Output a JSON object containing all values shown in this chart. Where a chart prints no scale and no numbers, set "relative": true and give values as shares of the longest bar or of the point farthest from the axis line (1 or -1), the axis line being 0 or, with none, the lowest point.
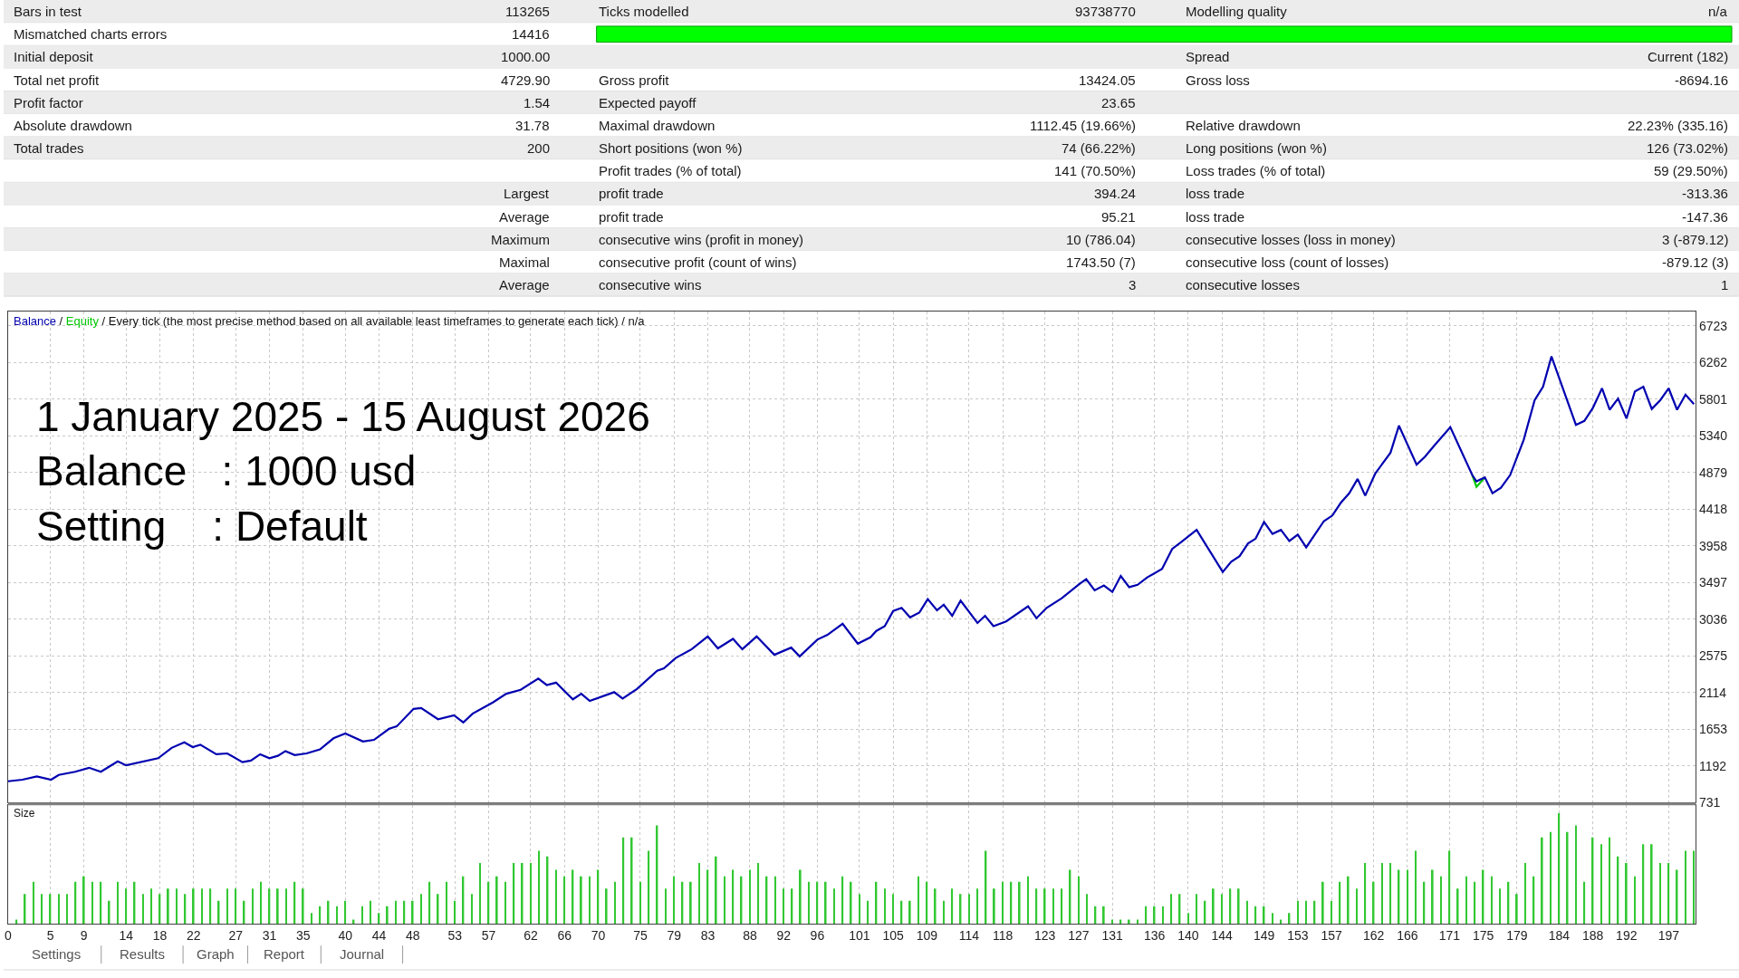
{
  "chart_data": [
    {
      "type": "other",
      "annotations": [
        "Bars in test",
        "113265",
        "Ticks modelled",
        "93738770",
        "Modelling quality",
        "n/a",
        "Mismatched charts errors",
        "14416",
        null,
        null,
        null,
        null,
        "Initial deposit",
        "1000.00",
        null,
        null,
        "Spread",
        "Current (182)",
        "Total net profit",
        "4729.90",
        "Gross profit",
        "13424.05",
        "Gross loss",
        "-8694.16",
        "Profit factor",
        "1.54",
        "Expected payoff",
        "23.65",
        null,
        null,
        "Absolute drawdown",
        "31.78",
        "Maximal drawdown",
        "1112.45 (19.66%)",
        "Relative drawdown",
        "22.23% (335.16)",
        "Total trades",
        "200",
        "Short positions (won %)",
        "74 (66.22%)",
        "Long positions (won %)",
        "126 (73.02%)",
        null,
        null,
        "Profit trades (% of total)",
        "141 (70.50%)",
        "Loss trades (% of total)",
        "59 (29.50%)",
        null,
        "Largest",
        "profit trade",
        "394.24",
        "loss trade",
        "-313.36",
        null,
        "Average",
        "profit trade",
        "95.21",
        "loss trade",
        "-147.36",
        null,
        "Maximum",
        "consecutive wins (profit in money)",
        "10 (786.04)",
        "consecutive losses (loss in money)",
        "3 (-879.12)",
        null,
        "Maximal",
        "consecutive profit (count of wins)",
        "1743.50 (7)",
        "consecutive loss (count of losses)",
        "-879.12 (3)",
        null,
        "Average",
        "consecutive wins",
        "3",
        "consecutive losses",
        "1"
      ]
    },
    {
      "type": "line",
      "subtitle": "/ Every tick (the most precise method based on all available least timeframes to generate each tick) / n/a",
      "annotations": [
        "/",
        "1 January 2025 - 15 August 2026",
        "Balance   : 1000 usd",
        "Setting    : Default"
      ],
      "series": [
        {
          "name": "Equity",
          "color": "#00c800",
          "x": [
            173.7,
            174.2,
            175.2
          ],
          "values": [
            4850,
            4700,
            4820
          ]
        },
        {
          "name": "Balance",
          "color": "#0000b0",
          "x": [
            0,
            1.7,
            3.4,
            5.1,
            6.0,
            7.95,
            9.6,
            11.0,
            13.0,
            14.0,
            17.8,
            19.4,
            20.9,
            21.9,
            22.8,
            24.7,
            26.0,
            27.8,
            28.8,
            29.9,
            31.0,
            32.0,
            32.9,
            34.0,
            35.4,
            37.0,
            38.6,
            40.0,
            42.1,
            43.4,
            45.2,
            46.1,
            48.1,
            49.0,
            51.0,
            52.9,
            54.0,
            55.1,
            57.5,
            59.1,
            60.8,
            62.9,
            63.9,
            65.0,
            67.0,
            68.0,
            69.0,
            71.9,
            72.9,
            74.6,
            77.0,
            77.8,
            79.2,
            81.1,
            83.0,
            84.2,
            86.0,
            87.1,
            88.8,
            90.9,
            92.9,
            93.9,
            96.0,
            97.2,
            99.0,
            100.8,
            102.3,
            103.0,
            104.0,
            105.0,
            106.0,
            107.0,
            108.1,
            109.1,
            110.2,
            111.0,
            112.0,
            113.0,
            115.0,
            115.9,
            116.9,
            118.4,
            121.0,
            122.0,
            123.2,
            125.0,
            127.1,
            127.9,
            128.9,
            130.0,
            131.0,
            132.0,
            133.0,
            134.0,
            135.1,
            136.9,
            138.1,
            139.2,
            141.0,
            144.1,
            145.1,
            146.1,
            147.1,
            148.0,
            149.0,
            150.0,
            151.0,
            152.0,
            153.0,
            154.0,
            156.1,
            157.1,
            158.1,
            159.1,
            160.1,
            161.0,
            162.2,
            164.0,
            165.0,
            167.1,
            168.1,
            169.2,
            171.1,
            173.7,
            174.2,
            175.2,
            176.1,
            177.1,
            178.2,
            179.8,
            181.1,
            182.1,
            183.1,
            186.0,
            187.0,
            188.0,
            189.1,
            190.0,
            191.0,
            192.0,
            193.0,
            194.0,
            195.0,
            196.0,
            197.0,
            198.0,
            199.0,
            200.0
          ],
          "values": [
            1000,
            1020,
            1060,
            1020,
            1080,
            1120,
            1170,
            1120,
            1250,
            1200,
            1290,
            1420,
            1490,
            1430,
            1460,
            1340,
            1350,
            1240,
            1260,
            1340,
            1290,
            1320,
            1380,
            1330,
            1350,
            1400,
            1540,
            1600,
            1500,
            1520,
            1660,
            1690,
            1910,
            1920,
            1780,
            1830,
            1740,
            1850,
            1990,
            2100,
            2150,
            2290,
            2210,
            2240,
            2030,
            2100,
            2010,
            2120,
            2040,
            2160,
            2390,
            2420,
            2550,
            2660,
            2820,
            2670,
            2790,
            2660,
            2820,
            2590,
            2680,
            2570,
            2780,
            2840,
            2980,
            2730,
            2810,
            2890,
            2950,
            3140,
            3180,
            3060,
            3120,
            3290,
            3150,
            3220,
            3080,
            3270,
            2990,
            3080,
            2950,
            3010,
            3200,
            3050,
            3180,
            3300,
            3480,
            3540,
            3400,
            3460,
            3380,
            3580,
            3440,
            3470,
            3560,
            3670,
            3920,
            4010,
            4160,
            3630,
            3760,
            3830,
            3990,
            4050,
            4260,
            4110,
            4160,
            4020,
            4100,
            3940,
            4270,
            4340,
            4500,
            4620,
            4800,
            4590,
            4870,
            5130,
            5470,
            4980,
            5080,
            5220,
            5450,
            4850,
            4770,
            4820,
            4620,
            4690,
            4850,
            5290,
            5790,
            5960,
            6340,
            5480,
            5530,
            5690,
            5940,
            5670,
            5810,
            5560,
            5900,
            5960,
            5680,
            5790,
            5940,
            5670,
            5860,
            5740
          ]
        }
      ],
      "xlim": [
        0,
        200.2
      ],
      "ylim": [
        731,
        6900
      ],
      "xticks": [
        {
          "value": 5,
          "label": null
        },
        {
          "value": 9,
          "label": null
        },
        {
          "value": 14,
          "label": null
        },
        {
          "value": 18,
          "label": null
        },
        {
          "value": 22,
          "label": null
        },
        {
          "value": 27,
          "label": null
        },
        {
          "value": 31,
          "label": null
        },
        {
          "value": 35,
          "label": null
        },
        {
          "value": 40,
          "label": null
        },
        {
          "value": 44,
          "label": null
        },
        {
          "value": 48,
          "label": null
        },
        {
          "value": 53,
          "label": null
        },
        {
          "value": 57,
          "label": null
        },
        {
          "value": 62,
          "label": null
        },
        {
          "value": 66,
          "label": null
        },
        {
          "value": 70,
          "label": null
        },
        {
          "value": 75,
          "label": null
        },
        {
          "value": 79,
          "label": null
        },
        {
          "value": 83,
          "label": null
        },
        {
          "value": 88,
          "label": null
        },
        {
          "value": 92,
          "label": null
        },
        {
          "value": 96,
          "label": null
        },
        {
          "value": 101,
          "label": null
        },
        {
          "value": 105,
          "label": null
        },
        {
          "value": 109,
          "label": null
        },
        {
          "value": 114,
          "label": null
        },
        {
          "value": 118,
          "label": null
        },
        {
          "value": 123,
          "label": null
        },
        {
          "value": 127,
          "label": null
        },
        {
          "value": 131,
          "label": null
        },
        {
          "value": 136,
          "label": null
        },
        {
          "value": 140,
          "label": null
        },
        {
          "value": 144,
          "label": null
        },
        {
          "value": 149,
          "label": null
        },
        {
          "value": 153,
          "label": null
        },
        {
          "value": 157,
          "label": null
        },
        {
          "value": 162,
          "label": null
        },
        {
          "value": 166,
          "label": null
        },
        {
          "value": 171,
          "label": null
        },
        {
          "value": 175,
          "label": null
        },
        {
          "value": 179,
          "label": null
        },
        {
          "value": 184,
          "label": null
        },
        {
          "value": 188,
          "label": null
        },
        {
          "value": 192,
          "label": null
        },
        {
          "value": 197,
          "label": null
        }
      ],
      "yticks": [
        731,
        1192,
        1653,
        2114,
        2575,
        3036,
        3497,
        3958,
        4418,
        4879,
        5340,
        5801,
        6262,
        6723
      ],
      "tick_labels": "y",
      "grid": true,
      "marker": "none",
      "line_style": "solid"
    },
    {
      "type": "bar",
      "title": "Size",
      "relative": true,
      "color": "#32c832",
      "tick_labels": "x",
      "grid": "x",
      "x": [
        1,
        2,
        3,
        4,
        5,
        6,
        7,
        8,
        9,
        10,
        11,
        12,
        13,
        14,
        15,
        16,
        17,
        18,
        19,
        20,
        21,
        22,
        23,
        24,
        25,
        26,
        27,
        28,
        29,
        30,
        31,
        32,
        33,
        34,
        35,
        36,
        37,
        38,
        39,
        40,
        41,
        42,
        43,
        44,
        45,
        46,
        47,
        48,
        49,
        50,
        51,
        52,
        53,
        54,
        55,
        56,
        57,
        58,
        59,
        60,
        61,
        62,
        63,
        64,
        65,
        66,
        67,
        68,
        69,
        70,
        71,
        72,
        73,
        74,
        75,
        76,
        77,
        78,
        79,
        80,
        81,
        82,
        83,
        84,
        85,
        86,
        87,
        88,
        89,
        90,
        91,
        92,
        93,
        94,
        95,
        96,
        97,
        98,
        99,
        100,
        101,
        102,
        103,
        104,
        105,
        106,
        107,
        108,
        109,
        110,
        111,
        112,
        113,
        114,
        115,
        116,
        117,
        118,
        119,
        120,
        121,
        122,
        123,
        124,
        125,
        126,
        127,
        128,
        129,
        130,
        131,
        132,
        133,
        134,
        135,
        136,
        137,
        138,
        139,
        140,
        141,
        142,
        143,
        144,
        145,
        146,
        147,
        148,
        149,
        150,
        151,
        152,
        153,
        154,
        155,
        156,
        157,
        158,
        159,
        160,
        161,
        162,
        163,
        164,
        165,
        166,
        167,
        168,
        169,
        170,
        171,
        172,
        173,
        174,
        175,
        176,
        177,
        178,
        179,
        180,
        181,
        182,
        183,
        184,
        185,
        186,
        187,
        188,
        189,
        190,
        191,
        192,
        193,
        194,
        195,
        196,
        197,
        198,
        199,
        200
      ],
      "values": [
        0.04,
        0.27,
        0.38,
        0.27,
        0.27,
        0.27,
        0.27,
        0.38,
        0.43,
        0.38,
        0.38,
        0.21,
        0.38,
        0.32,
        0.38,
        0.27,
        0.32,
        0.27,
        0.32,
        0.32,
        0.27,
        0.32,
        0.32,
        0.32,
        0.21,
        0.32,
        0.32,
        0.21,
        0.32,
        0.38,
        0.32,
        0.32,
        0.32,
        0.38,
        0.32,
        0.1,
        0.16,
        0.21,
        0.16,
        0.21,
        0.04,
        0.16,
        0.21,
        0.1,
        0.16,
        0.21,
        0.21,
        0.21,
        0.27,
        0.38,
        0.27,
        0.38,
        0.21,
        0.43,
        0.27,
        0.55,
        0.38,
        0.43,
        0.38,
        0.55,
        0.55,
        0.55,
        0.66,
        0.61,
        0.49,
        0.43,
        0.49,
        0.43,
        0.43,
        0.49,
        0.32,
        0.38,
        0.78,
        0.78,
        0.38,
        0.66,
        0.89,
        0.32,
        0.43,
        0.38,
        0.38,
        0.55,
        0.49,
        0.61,
        0.43,
        0.49,
        0.43,
        0.49,
        0.55,
        0.43,
        0.43,
        0.32,
        0.32,
        0.49,
        0.38,
        0.38,
        0.38,
        0.32,
        0.43,
        0.38,
        0.27,
        0.21,
        0.38,
        0.32,
        0.27,
        0.21,
        0.21,
        0.43,
        0.38,
        0.32,
        0.21,
        0.32,
        0.27,
        0.27,
        0.32,
        0.66,
        0.32,
        0.38,
        0.38,
        0.38,
        0.43,
        0.32,
        0.32,
        0.32,
        0.32,
        0.49,
        0.43,
        0.27,
        0.16,
        0.16,
        0.04,
        0.04,
        0.04,
        0.04,
        0.16,
        0.16,
        0.16,
        0.27,
        0.27,
        0.1,
        0.27,
        0.21,
        0.32,
        0.27,
        0.32,
        0.32,
        0.21,
        0.16,
        0.16,
        0.1,
        0.04,
        0.1,
        0.21,
        0.21,
        0.21,
        0.38,
        0.21,
        0.38,
        0.43,
        0.32,
        0.55,
        0.38,
        0.55,
        0.55,
        0.49,
        0.49,
        0.66,
        0.38,
        0.49,
        0.43,
        0.66,
        0.32,
        0.43,
        0.38,
        0.49,
        0.43,
        0.32,
        0.38,
        0.27,
        0.55,
        0.43,
        0.78,
        0.83,
        1,
        0.83,
        0.89,
        0.38,
        0.78,
        0.72,
        0.78,
        0.61,
        0.55,
        0.43,
        0.72,
        0.72,
        0.55,
        0.55,
        0.49,
        0.66,
        0.66
      ],
      "xlim": [
        0,
        200.2
      ],
      "xticks": [
        0,
        5,
        9,
        14,
        18,
        22,
        27,
        31,
        35,
        40,
        44,
        48,
        53,
        57,
        62,
        66,
        70,
        75,
        79,
        83,
        88,
        92,
        96,
        101,
        105,
        109,
        114,
        118,
        123,
        127,
        131,
        136,
        140,
        144,
        149,
        153,
        157,
        162,
        166,
        171,
        175,
        179,
        184,
        188,
        192,
        197
      ]
    },
    {
      "type": "other",
      "annotations": [
        "Settings",
        "Results",
        "Graph",
        "Report",
        "Journal"
      ]
    }
  ]
}
